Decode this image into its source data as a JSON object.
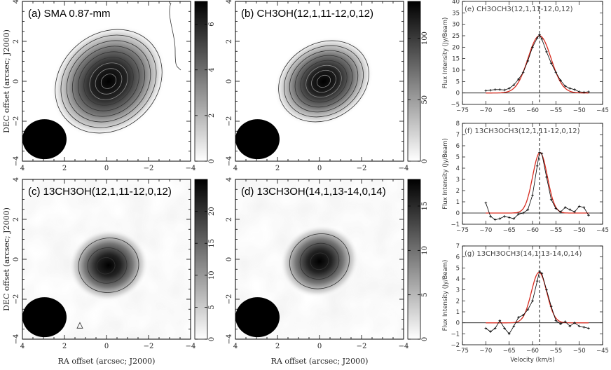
{
  "figure": {
    "map_xlabel": "RA offset (arcsec; J2000)",
    "map_ylabel": "DEC offset (arcsec; J2000)"
  },
  "chart_data": [
    {
      "type": "heatmap",
      "id": "a",
      "title": "(a) SMA 0.87-mm",
      "xlabel": "",
      "ylabel": "DEC offset (arcsec; J2000)",
      "xlim": [
        4,
        -4
      ],
      "ylim": [
        -4,
        4
      ],
      "x_ticks": [
        "4",
        "2",
        "0",
        "−2",
        "−4"
      ],
      "y_ticks": [
        "−4",
        "−2",
        "0",
        "2",
        "4"
      ],
      "colorbar": {
        "range": [
          0,
          7
        ],
        "ticks": [
          "0",
          "2",
          "4",
          "6"
        ]
      },
      "source": {
        "x": -0.1,
        "y": 0.0,
        "sx": 1.55,
        "sy": 1.3,
        "angle": -40
      },
      "contours": 9,
      "beam": {
        "x": 2.95,
        "y": -2.9,
        "major": 2.1,
        "minor": 1.9
      }
    },
    {
      "type": "heatmap",
      "id": "b",
      "title": "(b) CH3OH(12,1,11-12,0,12)",
      "xlabel": "",
      "ylabel": "",
      "xlim": [
        4,
        -4
      ],
      "ylim": [
        -4,
        4
      ],
      "x_ticks": [
        "4",
        "2",
        "0",
        "−2",
        "−4"
      ],
      "y_ticks": [
        "−4",
        "−2",
        "0",
        "2",
        "4"
      ],
      "colorbar": {
        "range": [
          0,
          130
        ],
        "ticks": [
          "0",
          "50",
          "100"
        ]
      },
      "source": {
        "x": -0.2,
        "y": 0.0,
        "sx": 1.3,
        "sy": 1.05,
        "angle": -30
      },
      "contours": 8,
      "beam": {
        "x": 2.95,
        "y": -2.9,
        "major": 2.1,
        "minor": 1.9
      }
    },
    {
      "type": "heatmap",
      "id": "c",
      "title": "(c) 13CH3OH(12,1,11-12,0,12)",
      "xlabel": "RA offset (arcsec; J2000)",
      "ylabel": "DEC offset (arcsec; J2000)",
      "xlim": [
        4,
        -4
      ],
      "ylim": [
        -4,
        4
      ],
      "x_ticks": [
        "4",
        "2",
        "0",
        "−2",
        "−4"
      ],
      "y_ticks": [
        "−4",
        "−2",
        "0",
        "2",
        "4"
      ],
      "colorbar": {
        "range": [
          0,
          25
        ],
        "ticks": [
          "0",
          "5",
          "10",
          "15",
          "20"
        ]
      },
      "source": {
        "x": -0.1,
        "y": -0.3,
        "sx": 1.0,
        "sy": 0.9,
        "angle": -10
      },
      "contours": 3,
      "beam": {
        "x": 2.95,
        "y": -2.9,
        "major": 2.1,
        "minor": 1.9
      }
    },
    {
      "type": "heatmap",
      "id": "d",
      "title": "(d) 13CH3OH(14,1,13-14,0,14)",
      "xlabel": "RA offset (arcsec; J2000)",
      "ylabel": "",
      "xlim": [
        4,
        -4
      ],
      "ylim": [
        -4,
        4
      ],
      "x_ticks": [
        "4",
        "2",
        "0",
        "−2",
        "−4"
      ],
      "y_ticks": [
        "−4",
        "−2",
        "0",
        "2",
        "4"
      ],
      "colorbar": {
        "range": [
          0,
          18
        ],
        "ticks": [
          "0",
          "5",
          "10",
          "15"
        ]
      },
      "source": {
        "x": 0.0,
        "y": -0.1,
        "sx": 1.0,
        "sy": 0.9,
        "angle": -20
      },
      "contours": 3,
      "beam": {
        "x": 2.95,
        "y": -2.9,
        "major": 2.1,
        "minor": 1.9
      }
    },
    {
      "type": "line",
      "id": "e",
      "title": "(e) CH3OCH3(12,1,11-12,0,12)",
      "xlabel": "",
      "ylabel": "Flux Intensity (Jy/Beam)",
      "xlim": [
        -75,
        -45
      ],
      "ylim": [
        -5,
        40
      ],
      "x_ticks": [
        -75,
        -70,
        -65,
        -60,
        -55,
        -50,
        -45
      ],
      "y_ticks": [
        -5,
        0,
        5,
        10,
        15,
        20,
        25,
        30,
        35,
        40
      ],
      "vline": -58.5,
      "series": [
        {
          "values_x": [
            -70,
            -69,
            -68,
            -67,
            -66,
            -65,
            -64,
            -63,
            -62,
            -61,
            -60,
            -59,
            -58.5,
            -58,
            -57,
            -56,
            -55,
            -54,
            -53,
            -52,
            -51,
            -50,
            -49,
            -48
          ],
          "values_y": [
            1.0,
            1.2,
            1.5,
            1.5,
            1.3,
            2.0,
            3.5,
            6.0,
            9.0,
            14.0,
            20.0,
            24.0,
            25.5,
            23.5,
            18.0,
            13.0,
            9.0,
            5.5,
            3.0,
            2.0,
            1.5,
            0.5,
            0.3,
            0.5
          ]
        },
        {
          "fit": "gaussian",
          "center": -58.5,
          "peak": 25.0,
          "fwhm": 5.8
        }
      ]
    },
    {
      "type": "line",
      "id": "f",
      "title": "(f) 13CH3OCH3(12,1,11-12,0,12)",
      "xlabel": "",
      "ylabel": "Flux Intensity (Jy/Beam)",
      "xlim": [
        -75,
        -45
      ],
      "ylim": [
        -1,
        8
      ],
      "x_ticks": [
        -75,
        -70,
        -65,
        -60,
        -55,
        -50,
        -45
      ],
      "y_ticks": [
        -1,
        0,
        1,
        2,
        3,
        4,
        5,
        6,
        7,
        8
      ],
      "vline": -58.5,
      "series": [
        {
          "values_x": [
            -70,
            -69,
            -68,
            -67,
            -66,
            -65,
            -64,
            -63,
            -62,
            -61,
            -60,
            -59,
            -58.5,
            -58,
            -57,
            -56,
            -55,
            -54,
            -53,
            -52,
            -51,
            -50,
            -49,
            -48
          ],
          "values_y": [
            0.9,
            -0.3,
            -0.6,
            -0.5,
            -0.3,
            -0.4,
            -0.5,
            -0.1,
            0.0,
            0.3,
            1.6,
            4.2,
            5.4,
            5.3,
            3.2,
            1.2,
            0.4,
            0.1,
            0.5,
            0.3,
            0.1,
            0.6,
            0.5,
            -0.2
          ]
        },
        {
          "fit": "gaussian",
          "center": -58.4,
          "peak": 5.4,
          "fwhm": 3.7
        }
      ]
    },
    {
      "type": "line",
      "id": "g",
      "title": "(g) 13CH3OCH3(14,1,13-14,0,14)",
      "xlabel": "Velocity (km/s)",
      "ylabel": "Flux Intensity (Jy/Beam)",
      "xlim": [
        -75,
        -45
      ],
      "ylim": [
        -2,
        7
      ],
      "x_ticks": [
        -75,
        -70,
        -65,
        -60,
        -55,
        -50,
        -45
      ],
      "y_ticks": [
        -2,
        -1,
        0,
        1,
        2,
        3,
        4,
        5,
        6,
        7
      ],
      "vline": -58.5,
      "series": [
        {
          "values_x": [
            -70,
            -69,
            -68,
            -67,
            -66,
            -65,
            -64,
            -63,
            -62,
            -61,
            -60,
            -59,
            -58.5,
            -58,
            -57,
            -56,
            -55,
            -54,
            -53,
            -52,
            -51,
            -50,
            -49,
            -48
          ],
          "values_y": [
            -0.5,
            -0.8,
            -0.5,
            0.2,
            -0.5,
            -1.0,
            -0.3,
            0.5,
            0.7,
            1.2,
            2.0,
            3.8,
            4.7,
            4.5,
            3.0,
            1.5,
            0.2,
            -0.1,
            0.1,
            -0.3,
            0.0,
            -0.3,
            -0.4,
            -0.5
          ]
        },
        {
          "fit": "gaussian",
          "center": -58.6,
          "peak": 4.6,
          "fwhm": 3.9
        }
      ]
    }
  ]
}
